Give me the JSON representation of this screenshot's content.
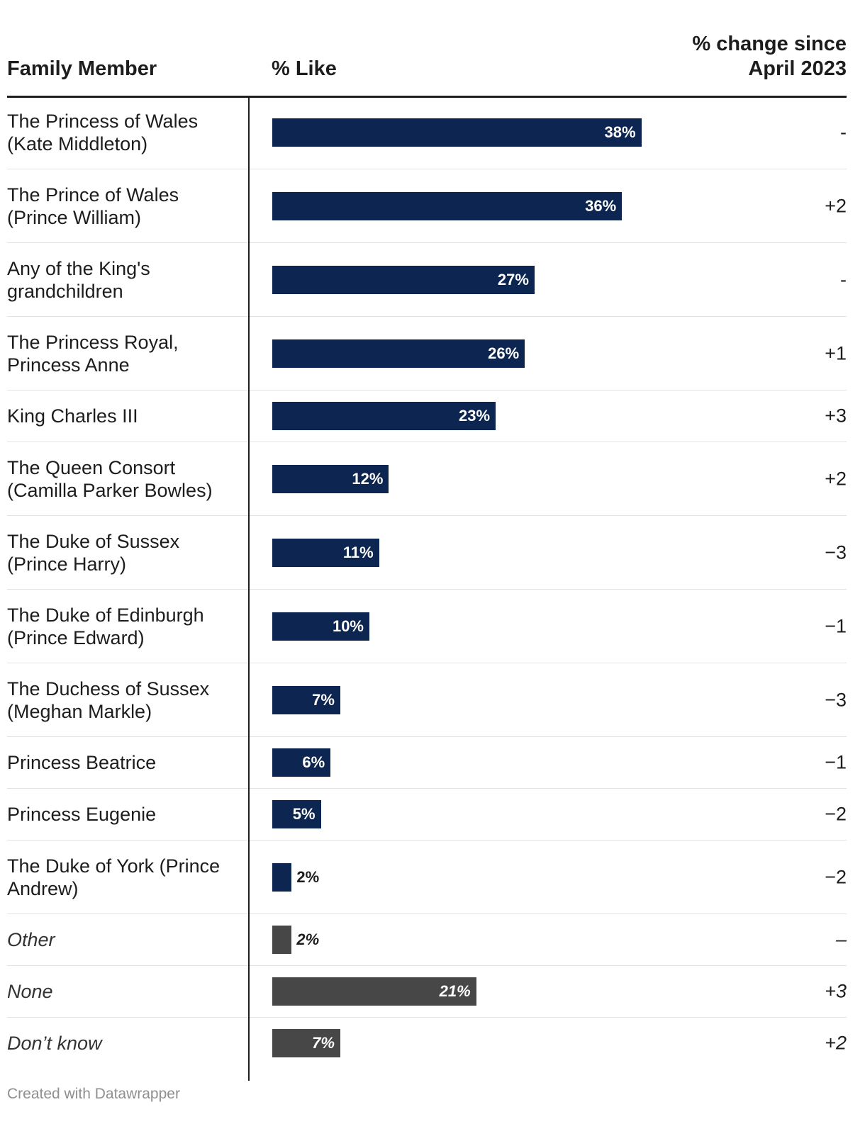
{
  "header": {
    "member": "Family Member",
    "like": "% Like",
    "change_line1": "% change since",
    "change_line2": "April 2023"
  },
  "colors": {
    "navy": "#0c2551",
    "grey": "#474747"
  },
  "chart_data": {
    "type": "bar",
    "orientation": "horizontal",
    "xlabel": "% Like",
    "xlim": [
      0,
      58
    ],
    "rows": [
      {
        "label": "The Princess of Wales (Kate Middleton)",
        "value": 38,
        "display": "38%",
        "change": "-",
        "group": "member"
      },
      {
        "label": "The Prince of Wales (Prince William)",
        "value": 36,
        "display": "36%",
        "change": "+2",
        "group": "member"
      },
      {
        "label": "Any of the King's grandchildren",
        "value": 27,
        "display": "27%",
        "change": "-",
        "group": "member"
      },
      {
        "label": "The Princess Royal, Princess Anne",
        "value": 26,
        "display": "26%",
        "change": "+1",
        "group": "member"
      },
      {
        "label": "King Charles III",
        "value": 23,
        "display": "23%",
        "change": "+3",
        "group": "member"
      },
      {
        "label": "The Queen Consort (Camilla Parker Bowles)",
        "value": 12,
        "display": "12%",
        "change": "+2",
        "group": "member"
      },
      {
        "label": "The Duke of Sussex (Prince Harry)",
        "value": 11,
        "display": "11%",
        "change": "−3",
        "group": "member"
      },
      {
        "label": "The Duke of Edinburgh (Prince Edward)",
        "value": 10,
        "display": "10%",
        "change": "−1",
        "group": "member"
      },
      {
        "label": "The Duchess of Sussex (Meghan Markle)",
        "value": 7,
        "display": "7%",
        "change": "−3",
        "group": "member"
      },
      {
        "label": "Princess Beatrice",
        "value": 6,
        "display": "6%",
        "change": "−1",
        "group": "member"
      },
      {
        "label": "Princess Eugenie",
        "value": 5,
        "display": "5%",
        "change": "−2",
        "group": "member"
      },
      {
        "label": "The Duke of York (Prince Andrew)",
        "value": 2,
        "display": "2%",
        "change": "−2",
        "group": "member"
      },
      {
        "label": "Other",
        "value": 2,
        "display": "2%",
        "change": "–",
        "group": "other"
      },
      {
        "label": "None",
        "value": 21,
        "display": "21%",
        "change": "+3",
        "group": "other"
      },
      {
        "label": "Don’t know",
        "value": 7,
        "display": "7%",
        "change": "+2",
        "group": "other"
      }
    ]
  },
  "footer": {
    "credit": "Created with Datawrapper"
  }
}
